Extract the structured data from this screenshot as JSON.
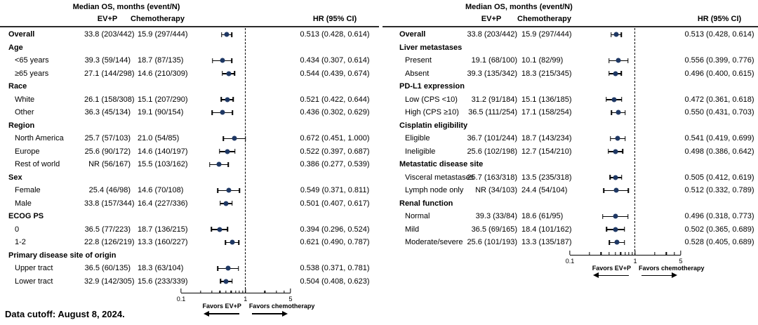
{
  "chart_data": {
    "type": "forest",
    "footnote": "Data cutoff: August 8, 2024.",
    "colors": {
      "marker": "#1f3864",
      "ci_line": "#000000"
    },
    "axis": {
      "scale": "log",
      "min": 0.1,
      "max": 5,
      "reference": 1,
      "major_ticks": [
        0.1,
        1,
        5
      ],
      "minor_ticks": [
        0.2,
        0.3,
        0.4,
        0.5,
        0.6,
        0.7,
        0.8,
        0.9,
        2,
        3,
        4
      ],
      "tick_labels": [
        "0.1",
        "1",
        "5"
      ],
      "favors_left": "Favors EV+P",
      "favors_right": "Favors chemotherapy"
    },
    "panels": [
      {
        "header": {
          "median_os": "Median OS, months (event/N)",
          "col_evp": "EV+P",
          "col_chemo": "Chemotherapy",
          "col_hr": "HR (95% CI)"
        },
        "rows": [
          {
            "type": "data",
            "bold": true,
            "label": "Overall",
            "evp": "33.8 (203/442)",
            "chemo": "15.9 (297/444)",
            "hr_text": "0.513 (0.428, 0.614)",
            "est": 0.513,
            "lo": 0.428,
            "hi": 0.614
          },
          {
            "type": "group",
            "label": "Age"
          },
          {
            "type": "data",
            "label": "<65 years",
            "evp": "39.3 (59/144)",
            "chemo": "18.7 (87/135)",
            "hr_text": "0.434 (0.307, 0.614)",
            "est": 0.434,
            "lo": 0.307,
            "hi": 0.614
          },
          {
            "type": "data",
            "label": "≥65 years",
            "evp": "27.1 (144/298)",
            "chemo": "14.6 (210/309)",
            "hr_text": "0.544 (0.439, 0.674)",
            "est": 0.544,
            "lo": 0.439,
            "hi": 0.674
          },
          {
            "type": "group",
            "label": "Race"
          },
          {
            "type": "data",
            "label": "White",
            "evp": "26.1 (158/308)",
            "chemo": "15.1 (207/290)",
            "hr_text": "0.521 (0.422, 0.644)",
            "est": 0.521,
            "lo": 0.422,
            "hi": 0.644
          },
          {
            "type": "data",
            "label": "Other",
            "evp": "36.3 (45/134)",
            "chemo": "19.1 (90/154)",
            "hr_text": "0.436 (0.302, 0.629)",
            "est": 0.436,
            "lo": 0.302,
            "hi": 0.629
          },
          {
            "type": "group",
            "label": "Region"
          },
          {
            "type": "data",
            "label": "North America",
            "evp": "25.7 (57/103)",
            "chemo": "21.0 (54/85)",
            "hr_text": "0.672 (0.451, 1.000)",
            "est": 0.672,
            "lo": 0.451,
            "hi": 1.0
          },
          {
            "type": "data",
            "label": "Europe",
            "evp": "25.6 (90/172)",
            "chemo": "14.6 (140/197)",
            "hr_text": "0.522 (0.397, 0.687)",
            "est": 0.522,
            "lo": 0.397,
            "hi": 0.687
          },
          {
            "type": "data",
            "label": "Rest of world",
            "evp": "NR (56/167)",
            "chemo": "15.5 (103/162)",
            "hr_text": "0.386 (0.277, 0.539)",
            "est": 0.386,
            "lo": 0.277,
            "hi": 0.539
          },
          {
            "type": "group",
            "label": "Sex"
          },
          {
            "type": "data",
            "label": "Female",
            "evp": "25.4 (46/98)",
            "chemo": "14.6 (70/108)",
            "hr_text": "0.549 (0.371, 0.811)",
            "est": 0.549,
            "lo": 0.371,
            "hi": 0.811
          },
          {
            "type": "data",
            "label": "Male",
            "evp": "33.8 (157/344)",
            "chemo": "16.4 (227/336)",
            "hr_text": "0.501 (0.407, 0.617)",
            "est": 0.501,
            "lo": 0.407,
            "hi": 0.617
          },
          {
            "type": "group",
            "label": "ECOG PS"
          },
          {
            "type": "data",
            "label": "0",
            "evp": "36.5 (77/223)",
            "chemo": "18.7 (136/215)",
            "hr_text": "0.394 (0.296, 0.524)",
            "est": 0.394,
            "lo": 0.296,
            "hi": 0.524
          },
          {
            "type": "data",
            "label": "1-2",
            "evp": "22.8 (126/219)",
            "chemo": "13.3 (160/227)",
            "hr_text": "0.621 (0.490, 0.787)",
            "est": 0.621,
            "lo": 0.49,
            "hi": 0.787
          },
          {
            "type": "group",
            "label": "Primary disease site of origin"
          },
          {
            "type": "data",
            "label": "Upper tract",
            "evp": "36.5 (60/135)",
            "chemo": "18.3 (63/104)",
            "hr_text": "0.538 (0.371, 0.781)",
            "est": 0.538,
            "lo": 0.371,
            "hi": 0.781
          },
          {
            "type": "data",
            "label": "Lower tract",
            "evp": "32.9 (142/305)",
            "chemo": "15.6 (233/339)",
            "hr_text": "0.504 (0.408, 0.623)",
            "est": 0.504,
            "lo": 0.408,
            "hi": 0.623
          }
        ]
      },
      {
        "header": {
          "median_os": "Median OS, months (event/N)",
          "col_evp": "EV+P",
          "col_chemo": "Chemotherapy",
          "col_hr": "HR (95% CI)"
        },
        "rows": [
          {
            "type": "data",
            "bold": true,
            "label": "Overall",
            "evp": "33.8 (203/442)",
            "chemo": "15.9 (297/444)",
            "hr_text": "0.513 (0.428, 0.614)",
            "est": 0.513,
            "lo": 0.428,
            "hi": 0.614
          },
          {
            "type": "group",
            "label": "Liver metastases"
          },
          {
            "type": "data",
            "label": "Present",
            "evp": "19.1 (68/100)",
            "chemo": "10.1 (82/99)",
            "hr_text": "0.556 (0.399, 0.776)",
            "est": 0.556,
            "lo": 0.399,
            "hi": 0.776
          },
          {
            "type": "data",
            "label": "Absent",
            "evp": "39.3 (135/342)",
            "chemo": "18.3 (215/345)",
            "hr_text": "0.496 (0.400, 0.615)",
            "est": 0.496,
            "lo": 0.4,
            "hi": 0.615
          },
          {
            "type": "group",
            "label": "PD-L1 expression"
          },
          {
            "type": "data",
            "label": "Low (CPS <10)",
            "evp": "31.2 (91/184)",
            "chemo": "15.1 (136/185)",
            "hr_text": "0.472 (0.361, 0.618)",
            "est": 0.472,
            "lo": 0.361,
            "hi": 0.618
          },
          {
            "type": "data",
            "label": "High (CPS ≥10)",
            "evp": "36.5 (111/254)",
            "chemo": "17.1 (158/254)",
            "hr_text": "0.550 (0.431, 0.703)",
            "est": 0.55,
            "lo": 0.431,
            "hi": 0.703
          },
          {
            "type": "group",
            "label": "Cisplatin eligibility"
          },
          {
            "type": "data",
            "label": "Eligible",
            "evp": "36.7 (101/244)",
            "chemo": "18.7 (143/234)",
            "hr_text": "0.541 (0.419, 0.699)",
            "est": 0.541,
            "lo": 0.419,
            "hi": 0.699
          },
          {
            "type": "data",
            "label": "Ineligible",
            "evp": "25.6 (102/198)",
            "chemo": "12.7 (154/210)",
            "hr_text": "0.498 (0.386, 0.642)",
            "est": 0.498,
            "lo": 0.386,
            "hi": 0.642
          },
          {
            "type": "group",
            "label": "Metastatic disease site"
          },
          {
            "type": "data",
            "label": "Visceral metastases",
            "evp": "25.7 (163/318)",
            "chemo": "13.5 (235/318)",
            "hr_text": "0.505 (0.412, 0.619)",
            "est": 0.505,
            "lo": 0.412,
            "hi": 0.619
          },
          {
            "type": "data",
            "label": "Lymph node only",
            "evp": "NR (34/103)",
            "chemo": "24.4 (54/104)",
            "hr_text": "0.512 (0.332, 0.789)",
            "est": 0.512,
            "lo": 0.332,
            "hi": 0.789
          },
          {
            "type": "group",
            "label": "Renal function"
          },
          {
            "type": "data",
            "label": "Normal",
            "evp": "39.3 (33/84)",
            "chemo": "18.6 (61/95)",
            "hr_text": "0.496 (0.318, 0.773)",
            "est": 0.496,
            "lo": 0.318,
            "hi": 0.773
          },
          {
            "type": "data",
            "label": "Mild",
            "evp": "36.5 (69/165)",
            "chemo": "18.4 (101/162)",
            "hr_text": "0.502 (0.365, 0.689)",
            "est": 0.502,
            "lo": 0.365,
            "hi": 0.689
          },
          {
            "type": "data",
            "label": "Moderate/severe",
            "evp": "25.6 (101/193)",
            "chemo": "13.3 (135/187)",
            "hr_text": "0.528 (0.405, 0.689)",
            "est": 0.528,
            "lo": 0.405,
            "hi": 0.689
          }
        ]
      }
    ]
  }
}
